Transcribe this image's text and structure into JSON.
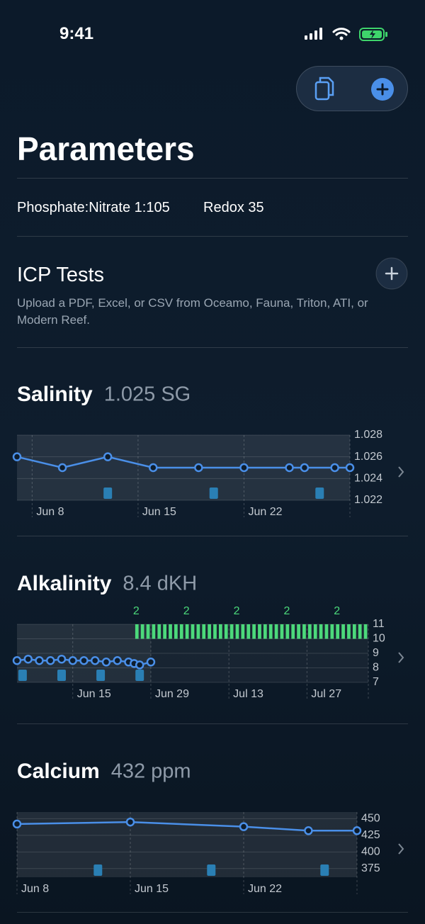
{
  "status_bar": {
    "time": "9:41"
  },
  "header": {
    "title": "Parameters"
  },
  "summary": {
    "ratio": "Phosphate:Nitrate 1:105",
    "redox": "Redox 35"
  },
  "icp": {
    "title": "ICP Tests",
    "description": "Upload a PDF, Excel, or CSV from Oceamo, Fauna, Triton, ATI, or Modern Reef."
  },
  "chart_data": [
    {
      "type": "line",
      "title": "Salinity",
      "subtitle": "1.025 SG",
      "color": "#4a8fe8",
      "x": [
        7,
        10,
        13,
        16,
        19,
        22,
        25,
        26,
        28,
        29
      ],
      "values": [
        1.026,
        1.025,
        1.026,
        1.025,
        1.025,
        1.025,
        1.025,
        1.025,
        1.025,
        1.025
      ],
      "xlim": [
        7,
        29
      ],
      "xticks": [
        {
          "value": 8,
          "label": "Jun 8"
        },
        {
          "value": 15,
          "label": "Jun 15"
        },
        {
          "value": 22,
          "label": "Jun 22"
        }
      ],
      "ylim": [
        1.022,
        1.028
      ],
      "yticks": [
        1.028,
        1.026,
        1.024,
        1.022
      ],
      "events": [
        13,
        20,
        27
      ],
      "event_color": "#2a7fb4",
      "grid": true
    },
    {
      "type": "line",
      "title": "Alkalinity",
      "subtitle": "8.4 dKH",
      "color": "#4a8fe8",
      "x": [
        5,
        7,
        9,
        11,
        13,
        15,
        17,
        19,
        21,
        23,
        25,
        26,
        27,
        29
      ],
      "values": [
        8.5,
        8.6,
        8.5,
        8.5,
        8.6,
        8.5,
        8.5,
        8.5,
        8.4,
        8.5,
        8.4,
        8.3,
        8.2,
        8.4
      ],
      "xlim": [
        5,
        68
      ],
      "xticks": [
        {
          "value": 15,
          "label": "Jun 15"
        },
        {
          "value": 29,
          "label": "Jun 29"
        },
        {
          "value": 43,
          "label": "Jul 13"
        },
        {
          "value": 57,
          "label": "Jul 27"
        }
      ],
      "ylim": [
        7,
        11
      ],
      "yticks": [
        11,
        10,
        9,
        8,
        7
      ],
      "events": [
        6,
        13,
        20,
        27
      ],
      "event_color": "#2a7fb4",
      "grid": true,
      "dosing": {
        "color": "#4cd97b",
        "xrange": [
          26,
          68
        ],
        "yrange": [
          10,
          11
        ],
        "label_x": [
          26,
          35,
          44,
          53,
          62
        ],
        "labels": [
          2,
          2,
          2,
          2,
          2
        ]
      }
    },
    {
      "type": "line",
      "title": "Calcium",
      "subtitle": "432 ppm",
      "color": "#4a8fe8",
      "x": [
        8,
        15,
        22,
        26,
        29
      ],
      "values": [
        442,
        445,
        438,
        432,
        432
      ],
      "xlim": [
        8,
        29
      ],
      "xticks": [
        {
          "value": 8,
          "label": "Jun 8"
        },
        {
          "value": 15,
          "label": "Jun 15"
        },
        {
          "value": 22,
          "label": "Jun 22"
        }
      ],
      "ylim": [
        362,
        460
      ],
      "yticks": [
        450,
        425,
        400,
        375
      ],
      "events": [
        13,
        20,
        27
      ],
      "event_color": "#2a7fb4",
      "grid": true
    }
  ]
}
